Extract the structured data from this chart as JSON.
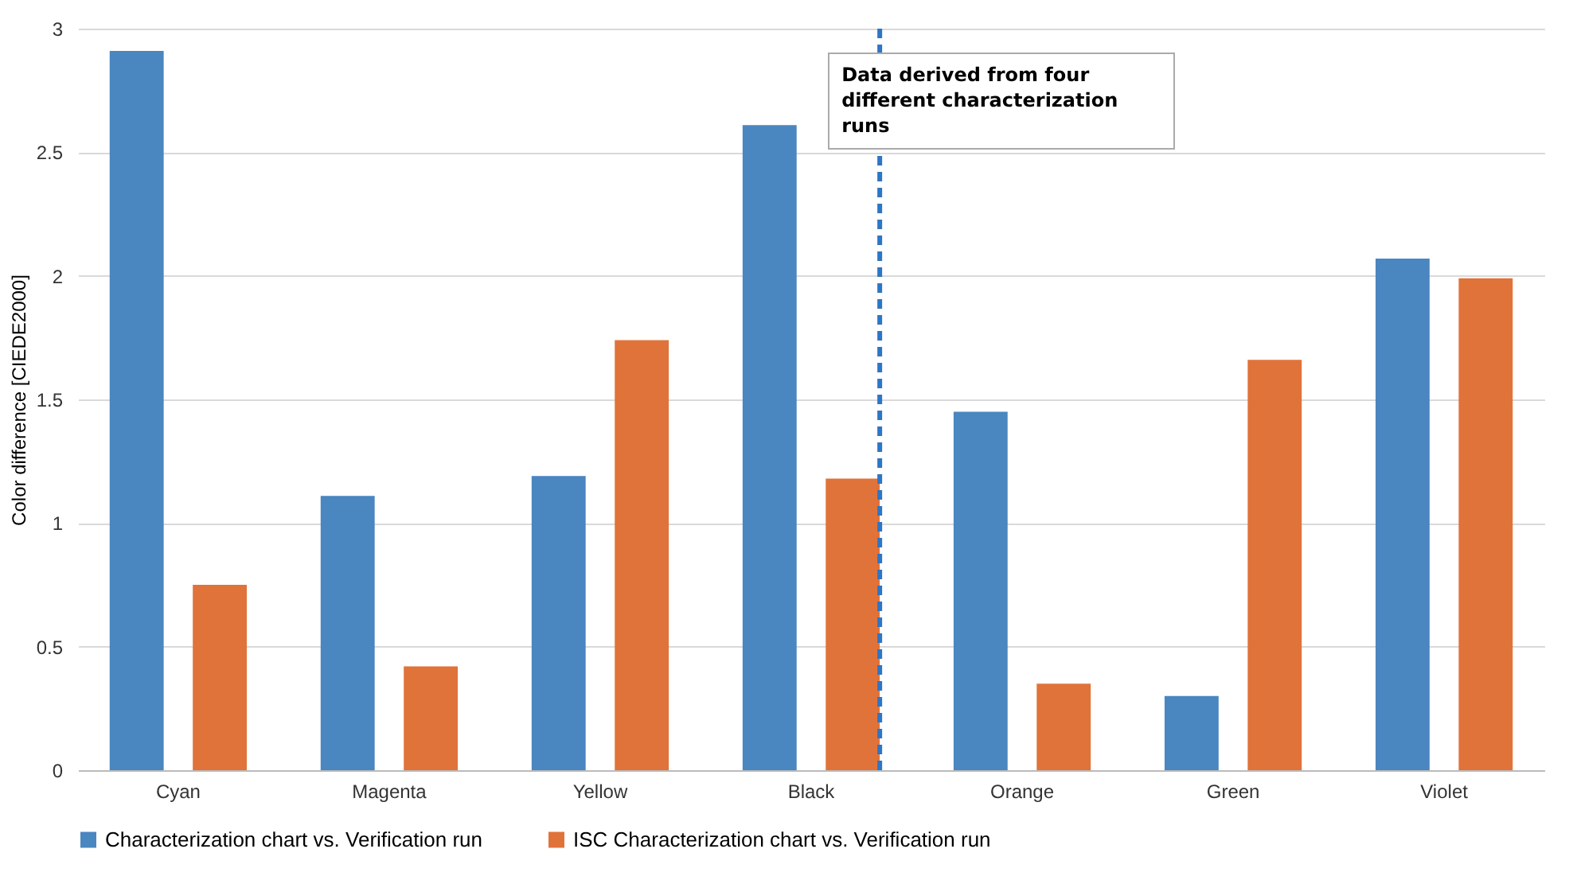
{
  "chart_data": {
    "type": "bar",
    "ylabel": "Color difference [CIEDE2000]",
    "categories": [
      "Cyan",
      "Magenta",
      "Yellow",
      "Black",
      "Orange",
      "Green",
      "Violet"
    ],
    "series": [
      {
        "name": "Characterization chart vs. Verification run",
        "color": "#4a86c0",
        "values": [
          2.91,
          1.11,
          1.19,
          2.61,
          1.45,
          0.3,
          2.07
        ]
      },
      {
        "name": "ISC Characterization chart vs. Verification run",
        "color": "#e0733a",
        "values": [
          0.75,
          0.42,
          1.74,
          1.18,
          0.35,
          1.66,
          1.99
        ]
      }
    ],
    "ylim": [
      0,
      3
    ],
    "yticks": [
      0,
      {
        "value": 0.5,
        "label": "0.5"
      },
      1,
      {
        "value": 1.5,
        "label": "1.5"
      },
      2,
      {
        "value": 2.5,
        "label": "2.5"
      },
      3
    ],
    "grid": "y",
    "legend": "bottom",
    "ref_lines": [
      {
        "axis": "x",
        "value": "Black",
        "label": "Data derived from four different characterization runs",
        "color": "#2e75c6",
        "line_style": "dashed"
      }
    ]
  }
}
